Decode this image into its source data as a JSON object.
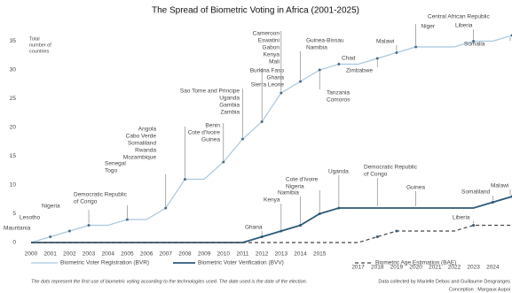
{
  "chart_data": {
    "type": "line",
    "title": "The Spread of Biometric Voting in Africa (2001-2025)",
    "ylabel": [
      "Total",
      "number of",
      "countries"
    ],
    "categories": [
      "2000",
      "2001",
      "2002",
      "2003",
      "2004",
      "2005",
      "2006",
      "2007",
      "2008",
      "2009",
      "2010",
      "2011",
      "2012",
      "2013",
      "2014",
      "2015",
      null,
      "2017",
      "2018",
      "2019",
      "2020",
      "2021",
      "2022",
      "2023",
      "2024",
      null
    ],
    "ylim": [
      0,
      36
    ],
    "yticks": [
      0,
      5,
      10,
      15,
      20,
      25,
      30,
      35
    ],
    "series": [
      {
        "name": "Biometric Voter Registration (BVR)",
        "color": "#a9c8df",
        "dash": false,
        "values": [
          0,
          1,
          2,
          3,
          3,
          4,
          4,
          6,
          11,
          11,
          14,
          18,
          21,
          26,
          28,
          30,
          31,
          31,
          32,
          33,
          34,
          34,
          34,
          35,
          35,
          36
        ]
      },
      {
        "name": "Biometric Voter Verification (BVV)",
        "color": "#2e5a78",
        "dash": false,
        "values": [
          0,
          0,
          0,
          0,
          0,
          0,
          0,
          0,
          0,
          0,
          0,
          0,
          1,
          2,
          3,
          5,
          6,
          6,
          6,
          6,
          6,
          6,
          6,
          6,
          7,
          8
        ]
      },
      {
        "name": "Biometric Age Estimation (BAE)",
        "color": "#444444",
        "dash": true,
        "values": [
          0,
          0,
          0,
          0,
          0,
          0,
          0,
          0,
          0,
          0,
          0,
          0,
          0,
          0,
          0,
          0,
          0,
          0,
          1,
          2,
          2,
          2,
          2,
          3,
          3,
          3
        ]
      }
    ],
    "annotations": [
      [
        "Mauritania"
      ],
      [
        "Lesotho"
      ],
      [
        "Nigeria"
      ],
      [
        "Democratic Republic",
        "of Congo"
      ],
      [
        "Senegal",
        "Togo"
      ],
      [
        "Angola",
        "Cabo Verde",
        "Somaliland",
        "Rwanda",
        "Mozambique"
      ],
      [
        "Benin",
        "Cote d'Ivoire",
        "Guinea"
      ],
      [
        "Sao Tome and Principe",
        "Uganda",
        "Gambia",
        "Zambia"
      ],
      [
        "Burkina Faso",
        "Ghana",
        "Sierra Leone"
      ],
      [
        "Cameroon",
        "Eswatini",
        "Gabon",
        "Kenya",
        "Mali"
      ],
      [
        "Guinea-Bissau",
        "Namibia"
      ],
      [
        "Tanzania",
        "Comoros"
      ],
      [
        "Chad"
      ],
      [
        "Zimbabwe"
      ],
      [
        "Malawi"
      ],
      [
        "Niger"
      ],
      [
        "Central African Republic"
      ],
      [
        "Liberia"
      ],
      [
        "Somalia"
      ],
      [
        "Ghana"
      ],
      [
        "Kenya"
      ],
      [
        "Namibia"
      ],
      [
        "Cote d'Ivoire",
        "Nigeria"
      ],
      [
        "Uganda"
      ],
      [
        "Democratic Republic",
        "of Congo"
      ],
      [
        "Guinea"
      ],
      [
        "Somaliland"
      ],
      [
        "Malawi"
      ],
      [
        "Liberia"
      ]
    ],
    "note": "The dots represent the first use of biometric voting according to the technologies used. The date used is the date of the election.",
    "credits": [
      "Data collected by Marielle Debos and Guillaume Desgranges",
      "Conception : Margaux Aupoi"
    ]
  }
}
